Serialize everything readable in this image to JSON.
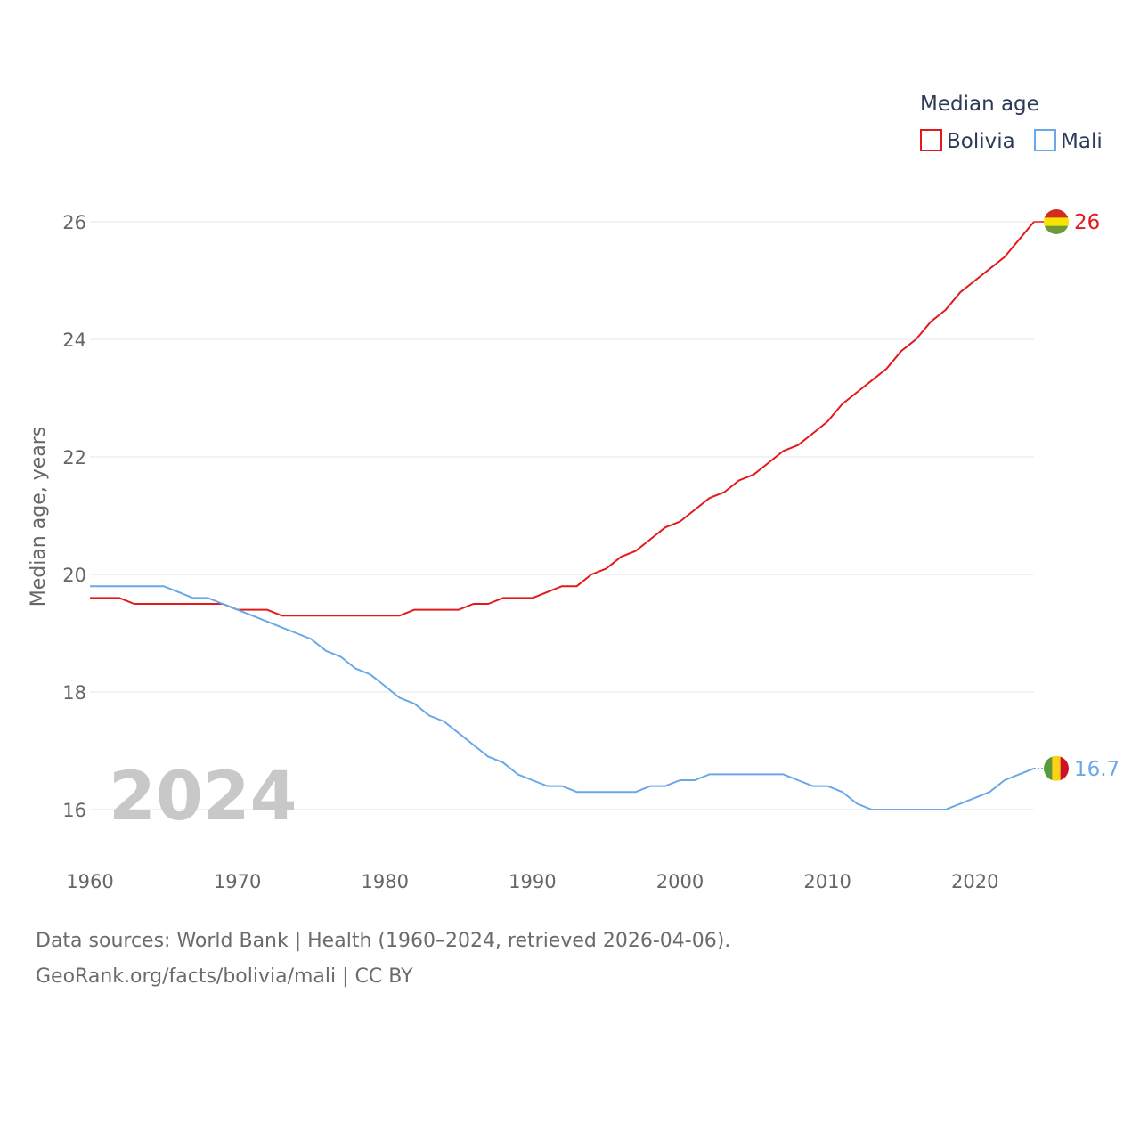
{
  "chart_data": {
    "type": "line",
    "legend_title": "Median age",
    "ylabel": "Median age, years",
    "xlim": [
      1960,
      2024
    ],
    "ylim": [
      15,
      27
    ],
    "yticks": [
      16,
      18,
      20,
      22,
      24,
      26
    ],
    "xticks": [
      1960,
      1970,
      1980,
      1990,
      2000,
      2010,
      2020
    ],
    "legend_position": "top-right",
    "current_year": "2024",
    "series": [
      {
        "name": "Bolivia",
        "color": "#e31a1c",
        "end_label": "26",
        "x": [
          1960,
          1961,
          1962,
          1963,
          1964,
          1965,
          1966,
          1967,
          1968,
          1969,
          1970,
          1971,
          1972,
          1973,
          1974,
          1975,
          1976,
          1977,
          1978,
          1979,
          1980,
          1981,
          1982,
          1983,
          1984,
          1985,
          1986,
          1987,
          1988,
          1989,
          1990,
          1991,
          1992,
          1993,
          1994,
          1995,
          1996,
          1997,
          1998,
          1999,
          2000,
          2001,
          2002,
          2003,
          2004,
          2005,
          2006,
          2007,
          2008,
          2009,
          2010,
          2011,
          2012,
          2013,
          2014,
          2015,
          2016,
          2017,
          2018,
          2019,
          2020,
          2021,
          2022,
          2023,
          2024
        ],
        "values": [
          19.6,
          19.6,
          19.6,
          19.5,
          19.5,
          19.5,
          19.5,
          19.5,
          19.5,
          19.5,
          19.4,
          19.4,
          19.4,
          19.3,
          19.3,
          19.3,
          19.3,
          19.3,
          19.3,
          19.3,
          19.3,
          19.3,
          19.4,
          19.4,
          19.4,
          19.4,
          19.5,
          19.5,
          19.6,
          19.6,
          19.6,
          19.7,
          19.8,
          19.8,
          20.0,
          20.1,
          20.3,
          20.4,
          20.6,
          20.8,
          20.9,
          21.1,
          21.3,
          21.4,
          21.6,
          21.7,
          21.9,
          22.1,
          22.2,
          22.4,
          22.6,
          22.9,
          23.1,
          23.3,
          23.5,
          23.8,
          24.0,
          24.3,
          24.5,
          24.8,
          25.0,
          25.2,
          25.4,
          25.7,
          26.0
        ]
      },
      {
        "name": "Mali",
        "color": "#6aa8e8",
        "end_label": "16.7",
        "x": [
          1960,
          1961,
          1962,
          1963,
          1964,
          1965,
          1966,
          1967,
          1968,
          1969,
          1970,
          1971,
          1972,
          1973,
          1974,
          1975,
          1976,
          1977,
          1978,
          1979,
          1980,
          1981,
          1982,
          1983,
          1984,
          1985,
          1986,
          1987,
          1988,
          1989,
          1990,
          1991,
          1992,
          1993,
          1994,
          1995,
          1996,
          1997,
          1998,
          1999,
          2000,
          2001,
          2002,
          2003,
          2004,
          2005,
          2006,
          2007,
          2008,
          2009,
          2010,
          2011,
          2012,
          2013,
          2014,
          2015,
          2016,
          2017,
          2018,
          2019,
          2020,
          2021,
          2022,
          2023,
          2024
        ],
        "values": [
          19.8,
          19.8,
          19.8,
          19.8,
          19.8,
          19.8,
          19.7,
          19.6,
          19.6,
          19.5,
          19.4,
          19.3,
          19.2,
          19.1,
          19.0,
          18.9,
          18.7,
          18.6,
          18.4,
          18.3,
          18.1,
          17.9,
          17.8,
          17.6,
          17.5,
          17.3,
          17.1,
          16.9,
          16.8,
          16.6,
          16.5,
          16.4,
          16.4,
          16.3,
          16.3,
          16.3,
          16.3,
          16.3,
          16.4,
          16.4,
          16.5,
          16.5,
          16.6,
          16.6,
          16.6,
          16.6,
          16.6,
          16.6,
          16.5,
          16.4,
          16.4,
          16.3,
          16.1,
          16.0,
          16.0,
          16.0,
          16.0,
          16.0,
          16.0,
          16.1,
          16.2,
          16.3,
          16.5,
          16.6,
          16.7
        ]
      }
    ]
  },
  "source_line_1": "Data sources: World Bank | Health (1960–2024, retrieved 2026-04-06).",
  "source_line_2": "GeoRank.org/facts/bolivia/mali | CC BY",
  "flags": {
    "bolivia": [
      "#d52b1e",
      "#f9e300",
      "#6a9a3a"
    ],
    "mali": [
      "#5a9a3c",
      "#fcd116",
      "#ce1126"
    ]
  }
}
